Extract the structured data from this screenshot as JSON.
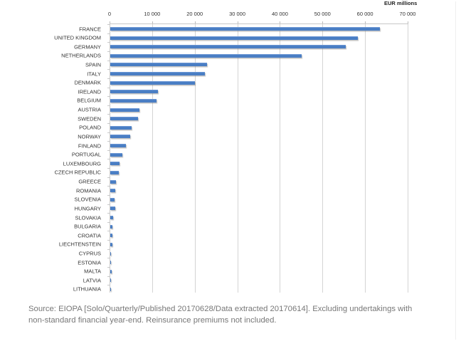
{
  "chart_data": {
    "type": "bar",
    "orientation": "horizontal",
    "title": "",
    "unit_label": "EUR millions",
    "xlabel": "EUR millions",
    "ylabel": "",
    "xlim": [
      0,
      70000
    ],
    "x_ticks": [
      "0",
      "10 000",
      "20 000",
      "30 000",
      "40 000",
      "50 000",
      "60 000",
      "70 000"
    ],
    "grid": true,
    "legend": null,
    "categories": [
      "FRANCE",
      "UNITED KINGDOM",
      "GERMANY",
      "NETHERLANDS",
      "SPAIN",
      "ITALY",
      "DENMARK",
      "IRELAND",
      "BELGIUM",
      "AUSTRIA",
      "SWEDEN",
      "POLAND",
      "NORWAY",
      "FINLAND",
      "PORTUGAL",
      "LUXEMBOURG",
      "CZECH REPUBLIC",
      "GREECE",
      "ROMANIA",
      "SLOVENIA",
      "HUNGARY",
      "SLOVAKIA",
      "BULGARIA",
      "CROATIA",
      "LIECHTENSTEIN",
      "CYPRUS",
      "ESTONIA",
      "MALTA",
      "LATVIA",
      "LITHUANIA"
    ],
    "values": [
      63300,
      58200,
      55300,
      44900,
      22700,
      22300,
      19800,
      11200,
      10800,
      6800,
      6500,
      5000,
      4700,
      3600,
      2900,
      2200,
      2000,
      1350,
      1100,
      1000,
      1200,
      600,
      550,
      550,
      500,
      250,
      200,
      280,
      100,
      100
    ],
    "bar_color": "#4a7ec4"
  },
  "footer": {
    "source_text": "Source: EIOPA [Solo/Quarterly/Published 20170628/Data extracted 20170614]. Excluding undertakings with non-standard financial year-end. Reinsurance premiums not included."
  }
}
